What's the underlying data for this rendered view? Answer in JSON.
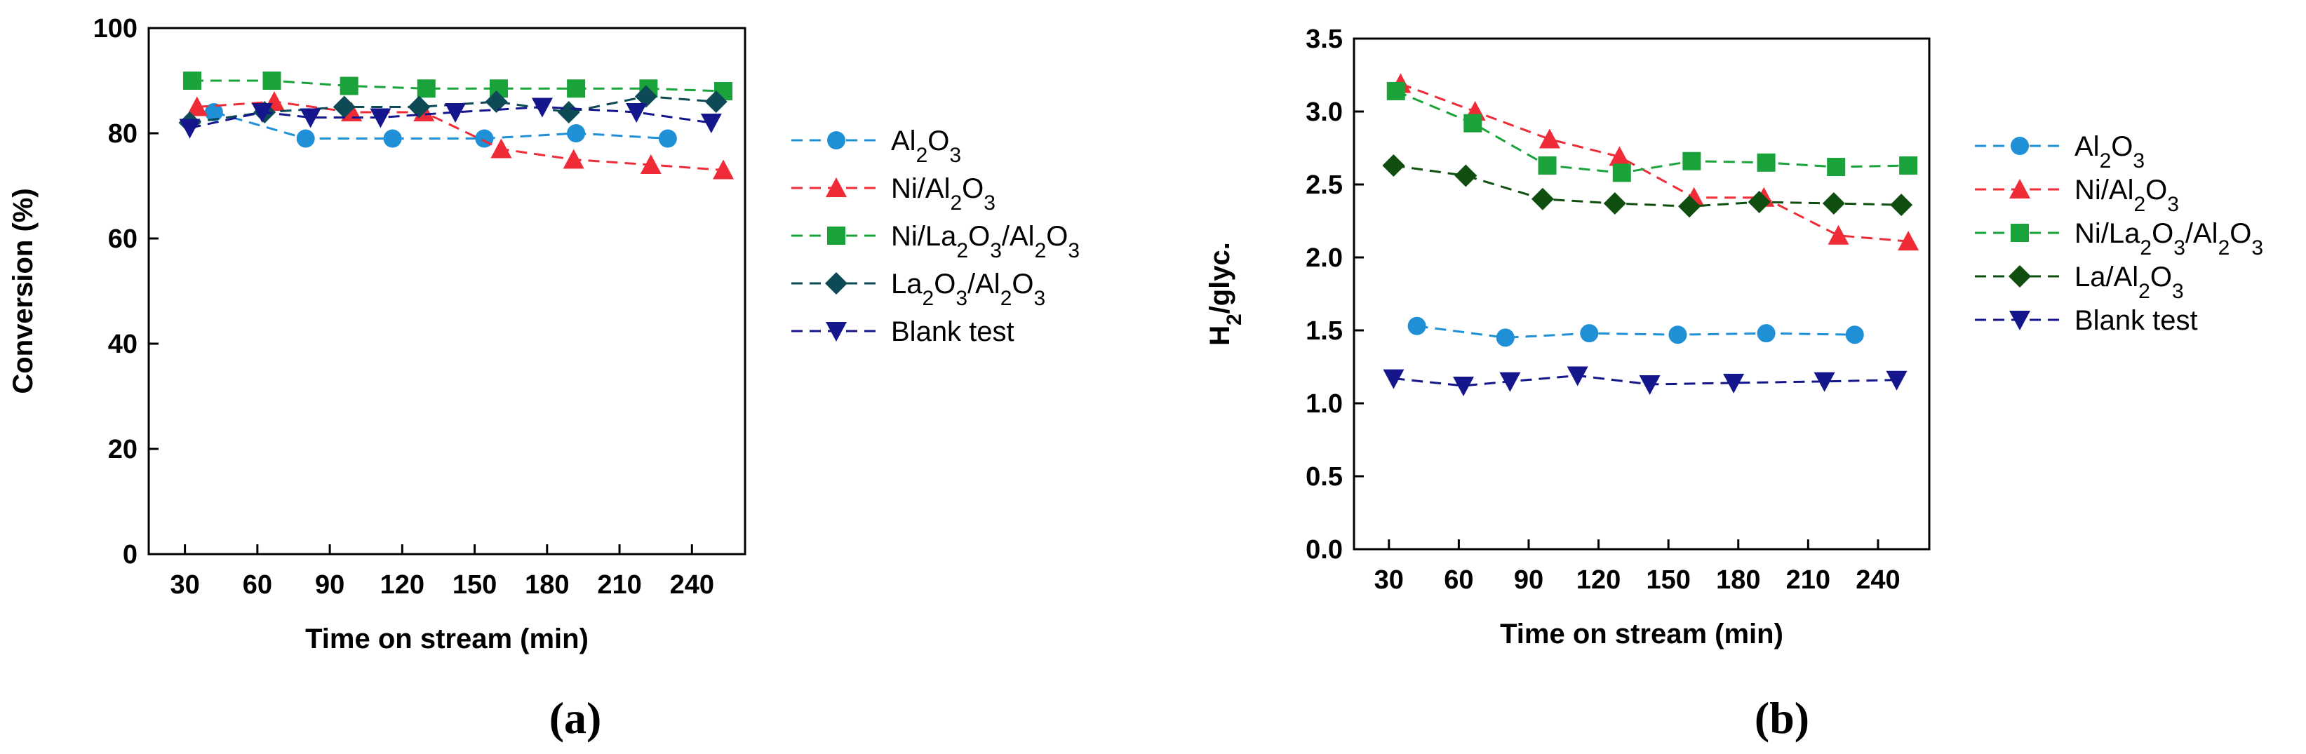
{
  "chart_data": [
    {
      "type": "line",
      "panel_label": "(a)",
      "xlabel": "Time on stream (min)",
      "ylabel": "Conversion (%)",
      "xlim": [
        15,
        262
      ],
      "ylim": [
        0,
        100
      ],
      "xticks": [
        30,
        60,
        90,
        120,
        150,
        180,
        210,
        240
      ],
      "yticks": [
        0,
        20,
        40,
        60,
        80,
        100
      ],
      "xtick_labels": [
        "30",
        "60",
        "90",
        "120",
        "150",
        "180",
        "210",
        "240"
      ],
      "ytick_labels": [
        "0",
        "20",
        "40",
        "60",
        "80",
        "100"
      ],
      "legend_position": "right",
      "series": [
        {
          "name": "Al2O3",
          "legend": [
            "Al",
            "2",
            "O",
            "3"
          ],
          "color": "#1f8fd6",
          "marker": "circle",
          "x": [
            42,
            80,
            116,
            154,
            192,
            230
          ],
          "y": [
            84,
            79,
            79,
            79,
            80,
            79
          ]
        },
        {
          "name": "Ni/Al2O3",
          "legend": [
            "Ni/Al",
            "2",
            "O",
            "3"
          ],
          "color": "#ee2b36",
          "marker": "triangle-up",
          "x": [
            35,
            67,
            99,
            129,
            161,
            191,
            223,
            253
          ],
          "y": [
            85,
            86,
            84,
            84,
            77,
            75,
            74,
            73
          ]
        },
        {
          "name": "Ni/La2O3/Al2O3",
          "legend": [
            "Ni/La",
            "2",
            "O",
            "3",
            "/Al",
            "2",
            "O",
            "3"
          ],
          "color": "#1aa33a",
          "marker": "square",
          "x": [
            33,
            66,
            98,
            130,
            160,
            192,
            222,
            253
          ],
          "y": [
            90,
            90,
            89,
            88.5,
            88.5,
            88.5,
            88.5,
            88
          ]
        },
        {
          "name": "La2O3/Al2O3",
          "legend": [
            "La",
            "2",
            "O",
            "3",
            "/Al",
            "2",
            "O",
            "3"
          ],
          "color": "#0e4a55",
          "marker": "diamond",
          "x": [
            32,
            63,
            96,
            127,
            159,
            189,
            221,
            250
          ],
          "y": [
            82,
            84,
            85,
            85,
            86,
            84,
            87,
            86
          ]
        },
        {
          "name": "Blank test",
          "legend": [
            "Blank test"
          ],
          "color": "#16168c",
          "marker": "triangle-down",
          "x": [
            32,
            62,
            82,
            111,
            142,
            178,
            217,
            248
          ],
          "y": [
            81,
            84,
            83,
            83,
            84,
            85,
            84,
            82
          ]
        }
      ]
    },
    {
      "type": "line",
      "panel_label": "(b)",
      "xlabel": "Time on stream (min)",
      "ylabel": "H2/glyc.",
      "ylabel_parts": [
        "H",
        "2",
        "/glyc."
      ],
      "xlim": [
        15,
        262
      ],
      "ylim": [
        0,
        3.5
      ],
      "xticks": [
        30,
        60,
        90,
        120,
        150,
        180,
        210,
        240
      ],
      "yticks": [
        0.0,
        0.5,
        1.0,
        1.5,
        2.0,
        2.5,
        3.0,
        3.5
      ],
      "xtick_labels": [
        "30",
        "60",
        "90",
        "120",
        "150",
        "180",
        "210",
        "240"
      ],
      "ytick_labels": [
        "0.0",
        "0.5",
        "1.0",
        "1.5",
        "2.0",
        "2.5",
        "3.0",
        "3.5"
      ],
      "legend_position": "right",
      "series": [
        {
          "name": "Al2O3",
          "legend": [
            "Al",
            "2",
            "O",
            "3"
          ],
          "color": "#1f8fd6",
          "marker": "circle",
          "x": [
            42,
            80,
            116,
            154,
            192,
            230
          ],
          "y": [
            1.53,
            1.45,
            1.48,
            1.47,
            1.48,
            1.47
          ]
        },
        {
          "name": "Ni/Al2O3",
          "legend": [
            "Ni/Al",
            "2",
            "O",
            "3"
          ],
          "color": "#ee2b36",
          "marker": "triangle-up",
          "x": [
            35,
            67,
            99,
            129,
            161,
            191,
            223,
            253
          ],
          "y": [
            3.19,
            3.0,
            2.81,
            2.69,
            2.41,
            2.41,
            2.15,
            2.11
          ]
        },
        {
          "name": "Ni/La2O3/Al2O3",
          "legend": [
            "Ni/La",
            "2",
            "O",
            "3",
            "/Al",
            "2",
            "O",
            "3"
          ],
          "color": "#1aa33a",
          "marker": "square",
          "x": [
            33,
            66,
            98,
            130,
            160,
            192,
            222,
            253
          ],
          "y": [
            3.14,
            2.92,
            2.63,
            2.58,
            2.66,
            2.65,
            2.62,
            2.63
          ]
        },
        {
          "name": "La/Al2O3",
          "legend": [
            "La/Al",
            "2",
            "O",
            "3"
          ],
          "color": "#0f4e0f",
          "marker": "diamond",
          "x": [
            32,
            63,
            96,
            127,
            159,
            189,
            221,
            250
          ],
          "y": [
            2.63,
            2.56,
            2.4,
            2.37,
            2.35,
            2.38,
            2.37,
            2.36
          ]
        },
        {
          "name": "Blank test",
          "legend": [
            "Blank test"
          ],
          "color": "#16168c",
          "marker": "triangle-down",
          "x": [
            32,
            62,
            82,
            111,
            142,
            178,
            217,
            248
          ],
          "y": [
            1.17,
            1.12,
            1.15,
            1.19,
            1.13,
            1.14,
            1.15,
            1.16
          ]
        }
      ]
    }
  ]
}
